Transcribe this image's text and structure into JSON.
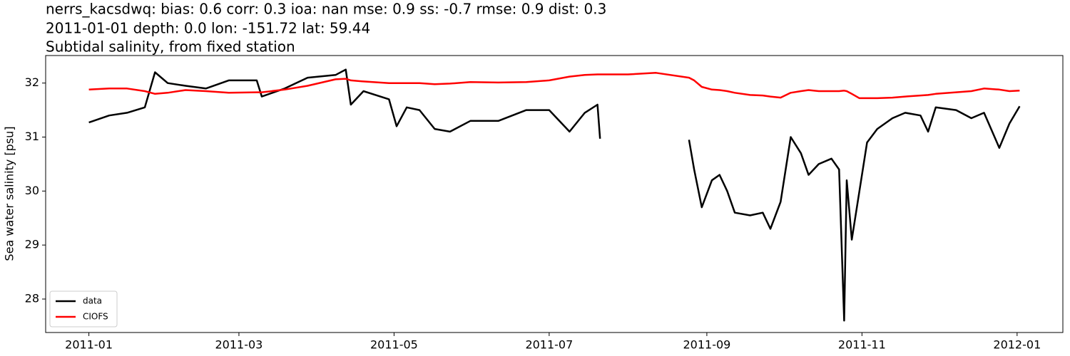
{
  "chart_data": {
    "type": "line",
    "title_lines": [
      "nerrs_kacsdwq: bias: 0.6  corr: 0.3  ioa: nan  mse: 0.9  ss: -0.7  rmse: 0.9  dist: 0.3",
      "2011-01-01 depth: 0.0 lon: -151.72 lat: 59.44",
      "Subtidal salinity, from fixed station"
    ],
    "y_label": "Sea water salinity [psu]",
    "x": [
      "2011-01-01",
      "2011-01-09",
      "2011-01-16",
      "2011-01-23",
      "2011-01-27",
      "2011-02-01",
      "2011-02-08",
      "2011-02-16",
      "2011-02-25",
      "2011-03-08",
      "2011-03-10",
      "2011-03-19",
      "2011-03-28",
      "2011-04-08",
      "2011-04-12",
      "2011-04-14",
      "2011-04-19",
      "2011-04-29",
      "2011-05-02",
      "2011-05-06",
      "2011-05-11",
      "2011-05-17",
      "2011-05-23",
      "2011-05-31",
      "2011-06-11",
      "2011-06-22",
      "2011-07-01",
      "2011-07-09",
      "2011-07-15",
      "2011-07-20",
      "2011-07-21",
      "2011-08-01",
      "2011-08-12",
      "2011-08-25",
      "2011-08-27",
      "2011-08-30",
      "2011-09-03",
      "2011-09-06",
      "2011-09-09",
      "2011-09-12",
      "2011-09-18",
      "2011-09-23",
      "2011-09-26",
      "2011-09-30",
      "2011-10-04",
      "2011-10-08",
      "2011-10-11",
      "2011-10-15",
      "2011-10-20",
      "2011-10-23",
      "2011-10-25",
      "2011-10-26",
      "2011-10-28",
      "2011-10-31",
      "2011-11-03",
      "2011-11-07",
      "2011-11-13",
      "2011-11-18",
      "2011-11-24",
      "2011-11-27",
      "2011-11-30",
      "2011-12-08",
      "2011-12-14",
      "2011-12-19",
      "2011-12-25",
      "2011-12-29",
      "2012-01-02"
    ],
    "series": [
      {
        "name": "data",
        "color": "#000000",
        "values": [
          31.27,
          31.4,
          31.45,
          31.55,
          32.2,
          32.0,
          31.95,
          31.9,
          32.05,
          32.05,
          31.75,
          31.9,
          32.1,
          32.15,
          32.25,
          31.6,
          31.85,
          31.7,
          31.2,
          31.55,
          31.5,
          31.15,
          31.1,
          31.3,
          31.3,
          31.5,
          31.5,
          31.1,
          31.45,
          31.6,
          30.97,
          null,
          null,
          30.95,
          30.4,
          29.7,
          30.2,
          30.3,
          30.0,
          29.6,
          29.55,
          29.6,
          29.3,
          29.8,
          31.0,
          30.7,
          30.3,
          30.5,
          30.6,
          30.4,
          27.6,
          30.2,
          29.1,
          30.0,
          30.9,
          31.15,
          31.35,
          31.45,
          31.4,
          31.1,
          31.55,
          31.5,
          31.35,
          31.45,
          30.8,
          31.25,
          31.57
        ]
      },
      {
        "name": "CIOFS",
        "color": "#ff0000",
        "values": [
          31.88,
          31.9,
          31.9,
          31.85,
          31.8,
          31.82,
          31.87,
          31.85,
          31.82,
          31.83,
          31.83,
          31.88,
          31.95,
          32.07,
          32.08,
          32.05,
          32.03,
          32.0,
          32.0,
          32.0,
          32.0,
          31.98,
          31.99,
          32.02,
          32.01,
          32.02,
          32.05,
          32.12,
          32.15,
          32.16,
          32.16,
          32.16,
          32.19,
          32.1,
          32.05,
          31.93,
          31.88,
          31.87,
          31.85,
          31.82,
          31.78,
          31.77,
          31.75,
          31.73,
          31.82,
          31.85,
          31.87,
          31.85,
          31.85,
          31.85,
          31.86,
          31.85,
          31.8,
          31.72,
          31.72,
          31.72,
          31.73,
          31.75,
          31.77,
          31.78,
          31.8,
          31.83,
          31.85,
          31.9,
          31.88,
          31.85,
          31.86
        ]
      }
    ],
    "xlim": [
      "2010-12-15",
      "2012-01-19"
    ],
    "xticks": [
      {
        "value": "2011-01-01",
        "label": "2011-01"
      },
      {
        "value": "2011-03-01",
        "label": "2011-03"
      },
      {
        "value": "2011-05-01",
        "label": "2011-05"
      },
      {
        "value": "2011-07-01",
        "label": "2011-07"
      },
      {
        "value": "2011-09-01",
        "label": "2011-09"
      },
      {
        "value": "2011-11-01",
        "label": "2011-11"
      },
      {
        "value": "2012-01-01",
        "label": "2012-01"
      }
    ],
    "ylim": [
      27.38,
      32.51
    ],
    "yticks": [
      28,
      29,
      30,
      31,
      32
    ],
    "legend": "lower left"
  }
}
